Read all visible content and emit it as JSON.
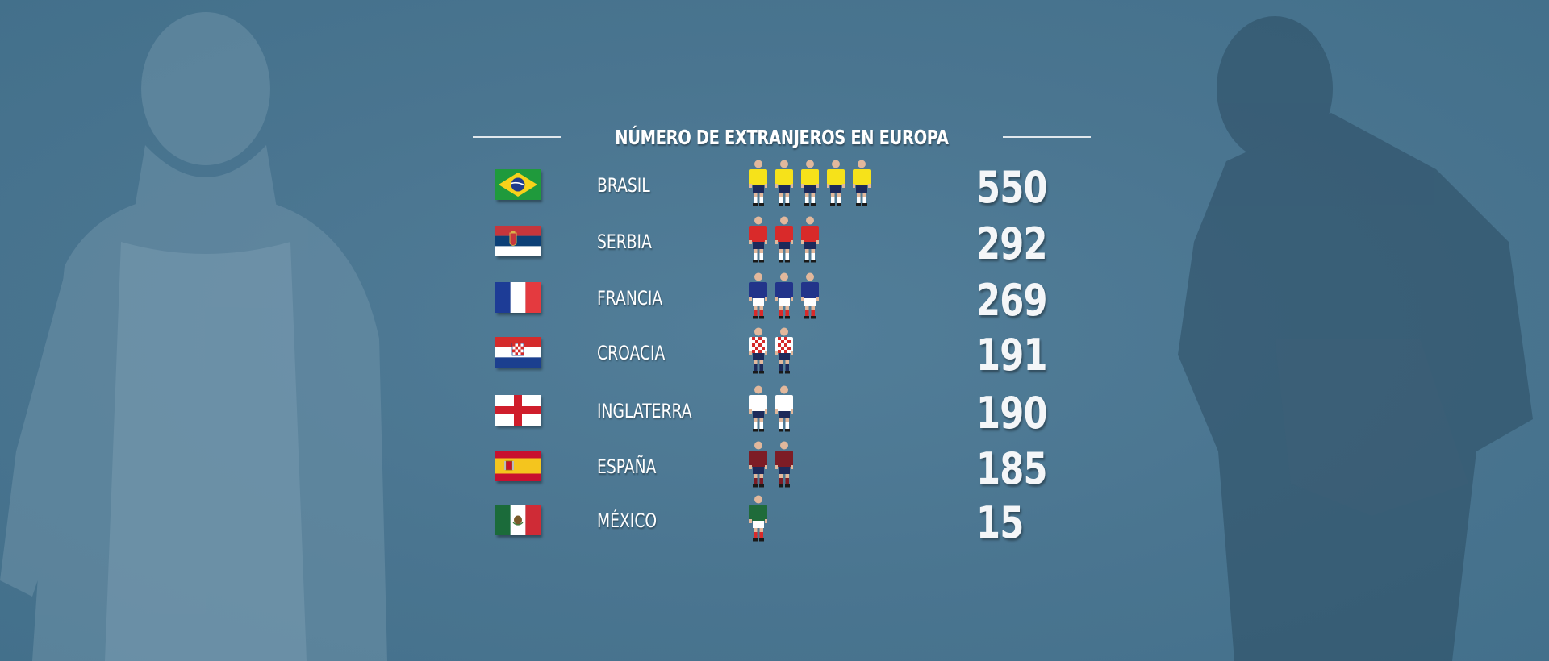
{
  "chart_data": {
    "type": "bar",
    "title": "NÚMERO DE EXTRANJEROS EN EUROPA",
    "categories": [
      "BRASIL",
      "SERBIA",
      "FRANCIA",
      "CROACIA",
      "INGLATERRA",
      "ESPAÑA",
      "MÉXICO"
    ],
    "values": [
      550,
      292,
      269,
      191,
      190,
      185,
      15
    ],
    "icon_counts": [
      5,
      3,
      3,
      2,
      2,
      2,
      1
    ],
    "series": [
      {
        "values": [
          550,
          292,
          269,
          191,
          190,
          185,
          15
        ]
      }
    ]
  },
  "rows": [
    {
      "country": "BRASIL",
      "value": "550",
      "flag": "brazil-flag",
      "kit": {
        "shirt": "#f6e21a",
        "shorts": "#1d2a5a",
        "socks": "#ffffff",
        "pattern": "solid"
      }
    },
    {
      "country": "SERBIA",
      "value": "292",
      "flag": "serbia-flag",
      "kit": {
        "shirt": "#d92a2a",
        "shorts": "#1d2a5a",
        "socks": "#ffffff",
        "pattern": "solid"
      }
    },
    {
      "country": "FRANCIA",
      "value": "269",
      "flag": "france-flag",
      "kit": {
        "shirt": "#22348a",
        "shorts": "#ffffff",
        "socks": "#d92a2a",
        "pattern": "solid"
      }
    },
    {
      "country": "CROACIA",
      "value": "191",
      "flag": "croatia-flag",
      "kit": {
        "shirt": "#ffffff",
        "shorts": "#1d2a5a",
        "socks": "#1d2a5a",
        "pattern": "checker"
      }
    },
    {
      "country": "INGLATERRA",
      "value": "190",
      "flag": "england-flag",
      "kit": {
        "shirt": "#ffffff",
        "shorts": "#1d2a5a",
        "socks": "#ffffff",
        "pattern": "solid"
      }
    },
    {
      "country": "ESPAÑA",
      "value": "185",
      "flag": "spain-flag",
      "kit": {
        "shirt": "#7d1c25",
        "shorts": "#1d2a5a",
        "socks": "#7d1c25",
        "pattern": "solid"
      }
    },
    {
      "country": "MÉXICO",
      "value": "15",
      "flag": "mexico-flag",
      "kit": {
        "shirt": "#1f6b3a",
        "shorts": "#ffffff",
        "socks": "#d92a2a",
        "pattern": "solid"
      }
    }
  ],
  "colors": {
    "background": "#4a7590",
    "text": "#ffffff"
  }
}
